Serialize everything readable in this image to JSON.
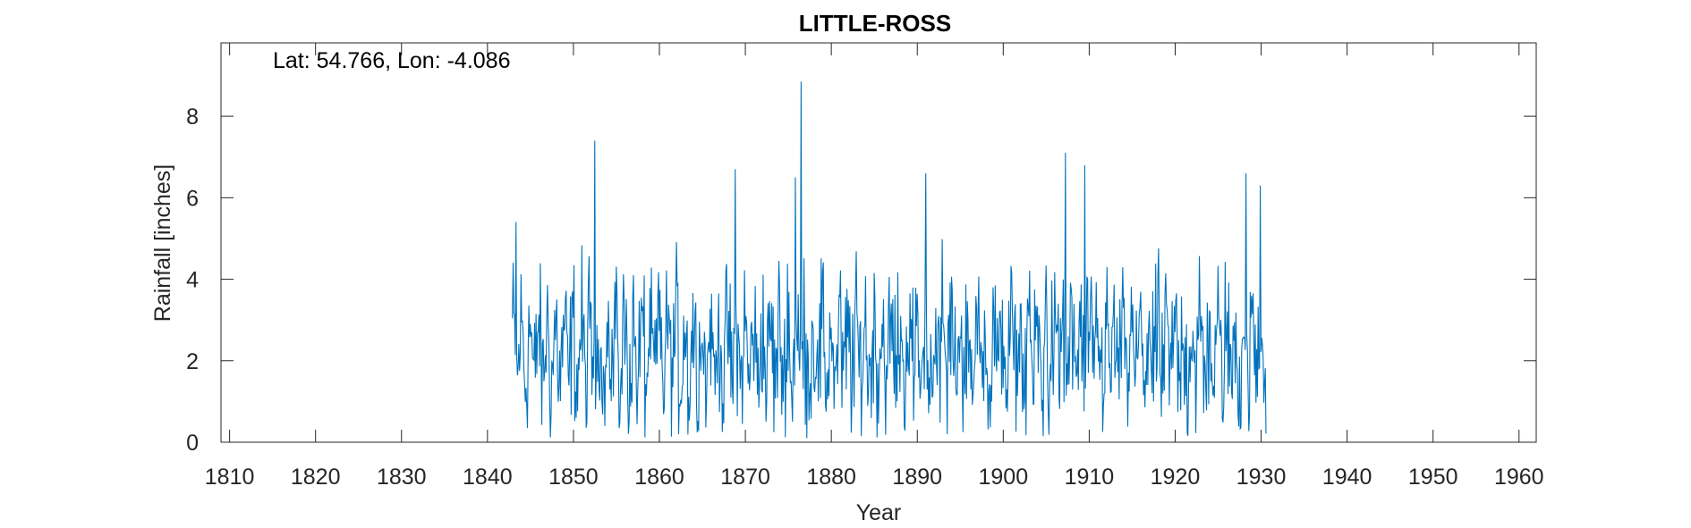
{
  "chart_data": {
    "type": "line",
    "title": "LITTLE-ROSS",
    "annotation": "Lat: 54.766, Lon: -4.086",
    "xlabel": "Year",
    "ylabel": "Rainfall [inches]",
    "xlim": [
      1809,
      1962
    ],
    "ylim": [
      0,
      9.8
    ],
    "xticks": [
      1810,
      1820,
      1830,
      1840,
      1850,
      1860,
      1870,
      1880,
      1890,
      1900,
      1910,
      1920,
      1930,
      1940,
      1950,
      1960
    ],
    "yticks": [
      0,
      2,
      4,
      6,
      8
    ],
    "grid": false,
    "series": [
      {
        "color": "#0072BD",
        "resolution": "monthly",
        "x_start": 1842.9,
        "x_end": 1930.6,
        "peaks": [
          {
            "x": 1843.3,
            "y": 5.4
          },
          {
            "x": 1852.5,
            "y": 7.4
          },
          {
            "x": 1868.8,
            "y": 6.7
          },
          {
            "x": 1875.8,
            "y": 6.5
          },
          {
            "x": 1876.5,
            "y": 8.85
          },
          {
            "x": 1891.0,
            "y": 6.6
          },
          {
            "x": 1907.2,
            "y": 7.1
          },
          {
            "x": 1909.5,
            "y": 6.8
          },
          {
            "x": 1928.2,
            "y": 6.6
          },
          {
            "x": 1929.9,
            "y": 6.3
          }
        ]
      }
    ]
  }
}
